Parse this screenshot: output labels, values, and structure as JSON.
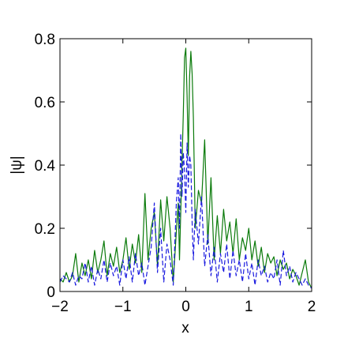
{
  "chart_data": {
    "type": "line",
    "xlabel": "x",
    "ylabel": "|ψ|",
    "xlim": [
      -2,
      2
    ],
    "ylim": [
      0,
      0.8
    ],
    "xticks": [
      -2,
      -1,
      0,
      1,
      2
    ],
    "xtick_labels": [
      "−2",
      "−1",
      "0",
      "1",
      "2"
    ],
    "yticks": [
      0,
      0.2,
      0.4,
      0.6,
      0.8
    ],
    "ytick_labels": [
      "0",
      "0.2",
      "0.4",
      "0.6",
      "0.8"
    ],
    "grid": false,
    "series": [
      {
        "style": "solid",
        "color": "#0a7a0a",
        "x": [
          -2.0,
          -1.95,
          -1.9,
          -1.85,
          -1.8,
          -1.75,
          -1.7,
          -1.65,
          -1.6,
          -1.55,
          -1.5,
          -1.45,
          -1.4,
          -1.35,
          -1.3,
          -1.25,
          -1.2,
          -1.15,
          -1.1,
          -1.05,
          -1.0,
          -0.95,
          -0.9,
          -0.85,
          -0.8,
          -0.75,
          -0.7,
          -0.65,
          -0.6,
          -0.55,
          -0.5,
          -0.45,
          -0.4,
          -0.35,
          -0.3,
          -0.25,
          -0.2,
          -0.15,
          -0.12,
          -0.1,
          -0.07,
          -0.04,
          -0.02,
          0.0,
          0.02,
          0.04,
          0.06,
          0.08,
          0.1,
          0.12,
          0.15,
          0.2,
          0.25,
          0.3,
          0.35,
          0.4,
          0.45,
          0.5,
          0.55,
          0.6,
          0.65,
          0.7,
          0.75,
          0.8,
          0.85,
          0.9,
          0.95,
          1.0,
          1.05,
          1.1,
          1.15,
          1.2,
          1.25,
          1.3,
          1.35,
          1.4,
          1.45,
          1.5,
          1.55,
          1.6,
          1.65,
          1.7,
          1.75,
          1.8,
          1.85,
          1.9,
          1.95,
          2.0
        ],
        "y": [
          0.04,
          0.03,
          0.06,
          0.03,
          0.05,
          0.12,
          0.03,
          0.09,
          0.05,
          0.1,
          0.04,
          0.13,
          0.06,
          0.1,
          0.16,
          0.05,
          0.12,
          0.08,
          0.14,
          0.06,
          0.1,
          0.17,
          0.07,
          0.15,
          0.09,
          0.18,
          0.06,
          0.31,
          0.1,
          0.2,
          0.25,
          0.08,
          0.29,
          0.16,
          0.3,
          0.2,
          0.03,
          0.19,
          0.28,
          0.1,
          0.33,
          0.56,
          0.74,
          0.77,
          0.62,
          0.43,
          0.68,
          0.76,
          0.69,
          0.55,
          0.2,
          0.32,
          0.28,
          0.48,
          0.15,
          0.36,
          0.1,
          0.24,
          0.12,
          0.26,
          0.16,
          0.22,
          0.12,
          0.23,
          0.1,
          0.17,
          0.13,
          0.2,
          0.1,
          0.16,
          0.08,
          0.14,
          0.06,
          0.12,
          0.09,
          0.11,
          0.05,
          0.1,
          0.07,
          0.09,
          0.04,
          0.07,
          0.05,
          0.02,
          0.06,
          0.1,
          0.03,
          0.01
        ]
      },
      {
        "style": "dashed",
        "color": "#1a1adf",
        "x": [
          -2.0,
          -1.95,
          -1.9,
          -1.85,
          -1.8,
          -1.75,
          -1.7,
          -1.65,
          -1.6,
          -1.55,
          -1.5,
          -1.45,
          -1.4,
          -1.35,
          -1.3,
          -1.25,
          -1.2,
          -1.15,
          -1.1,
          -1.05,
          -1.0,
          -0.95,
          -0.9,
          -0.85,
          -0.8,
          -0.75,
          -0.7,
          -0.65,
          -0.6,
          -0.55,
          -0.5,
          -0.45,
          -0.4,
          -0.35,
          -0.3,
          -0.25,
          -0.2,
          -0.15,
          -0.12,
          -0.1,
          -0.08,
          -0.06,
          -0.04,
          -0.02,
          0.0,
          0.02,
          0.04,
          0.06,
          0.08,
          0.1,
          0.12,
          0.15,
          0.2,
          0.25,
          0.3,
          0.35,
          0.4,
          0.45,
          0.5,
          0.55,
          0.6,
          0.65,
          0.7,
          0.75,
          0.8,
          0.85,
          0.9,
          0.95,
          1.0,
          1.05,
          1.1,
          1.15,
          1.2,
          1.25,
          1.3,
          1.35,
          1.4,
          1.45,
          1.5,
          1.55,
          1.6,
          1.65,
          1.7,
          1.75,
          1.8,
          1.85,
          1.9,
          1.95,
          2.0
        ],
        "y": [
          0.03,
          0.05,
          0.04,
          0.03,
          0.06,
          0.02,
          0.05,
          0.04,
          0.09,
          0.03,
          0.08,
          0.02,
          0.07,
          0.04,
          0.1,
          0.03,
          0.09,
          0.05,
          0.08,
          0.02,
          0.1,
          0.04,
          0.11,
          0.03,
          0.12,
          0.05,
          0.09,
          0.02,
          0.08,
          0.14,
          0.28,
          0.06,
          0.2,
          0.03,
          0.15,
          0.1,
          0.02,
          0.28,
          0.36,
          0.2,
          0.5,
          0.3,
          0.44,
          0.38,
          0.25,
          0.47,
          0.33,
          0.43,
          0.4,
          0.22,
          0.1,
          0.26,
          0.15,
          0.3,
          0.08,
          0.18,
          0.05,
          0.14,
          0.03,
          0.12,
          0.06,
          0.15,
          0.04,
          0.13,
          0.05,
          0.1,
          0.03,
          0.12,
          0.04,
          0.09,
          0.02,
          0.1,
          0.05,
          0.08,
          0.03,
          0.06,
          0.04,
          0.1,
          0.02,
          0.13,
          0.05,
          0.08,
          0.03,
          0.06,
          0.04,
          0.02,
          0.04,
          0.02,
          0.01
        ]
      }
    ]
  }
}
